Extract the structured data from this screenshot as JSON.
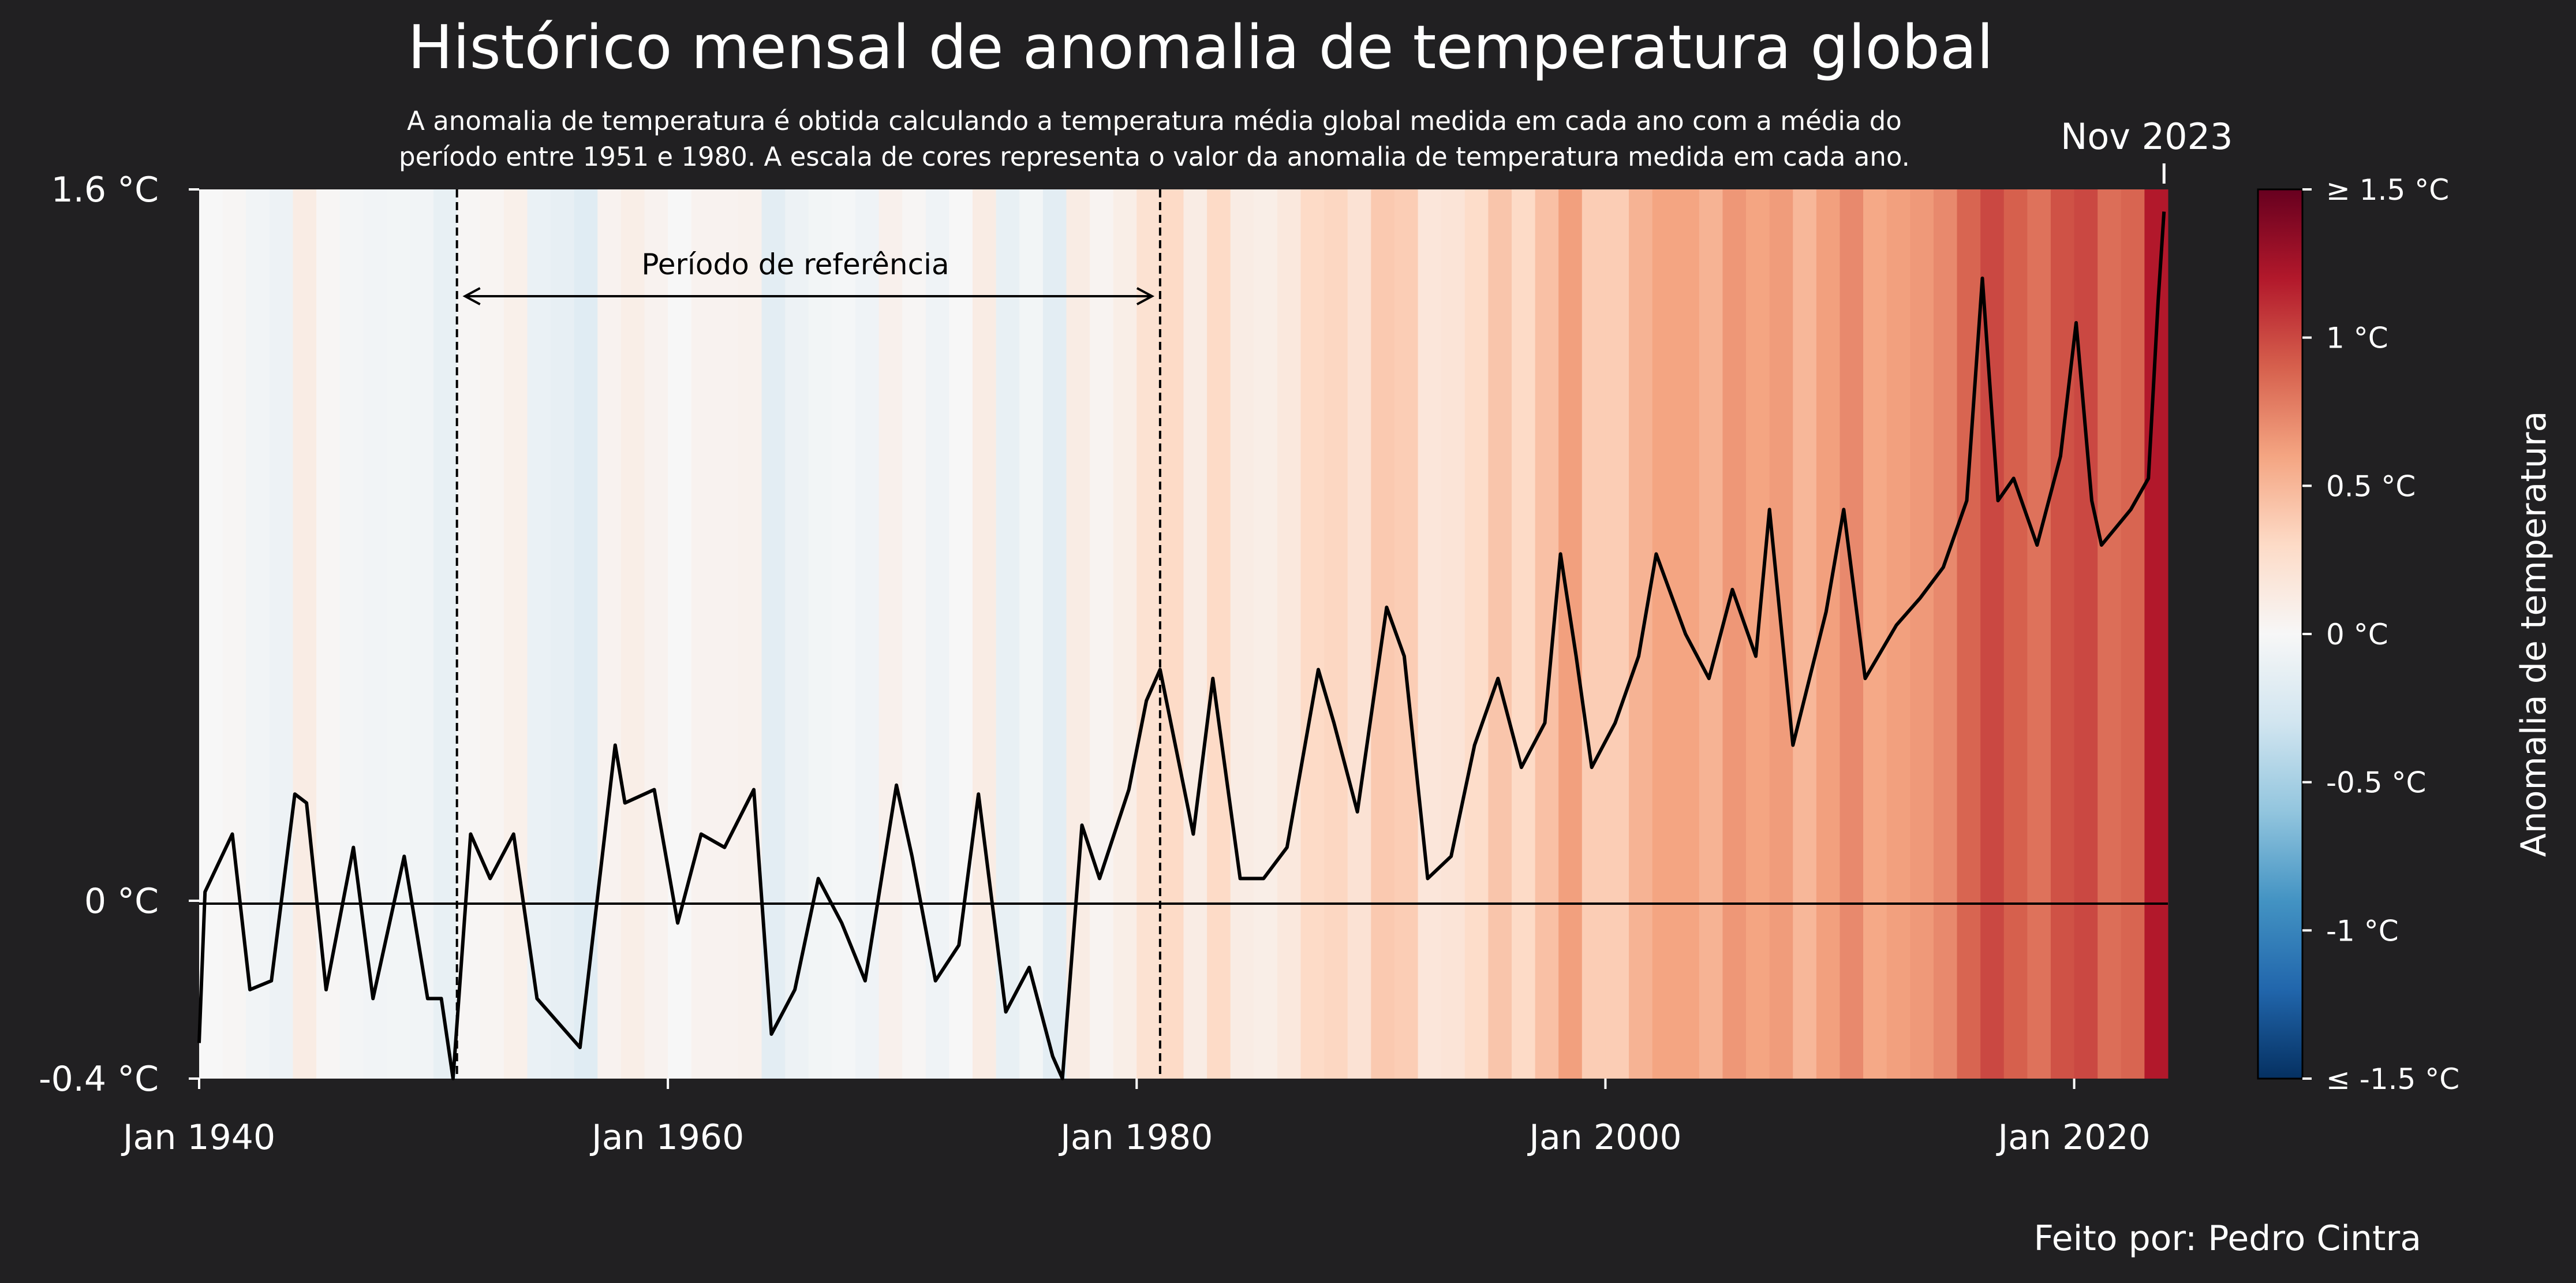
{
  "chart_data": {
    "type": "line",
    "title": "Histórico mensal de anomalia de temperatura global",
    "subtitle_lines": [
      "A anomalia de temperatura é obtida calculando a temperatura média global medida em cada ano com a média do",
      "período entre 1951 e 1980. A escala de cores representa o valor da anomalia de temperatura medida em cada ano."
    ],
    "x_range": [
      "1940-01",
      "2023-11"
    ],
    "x_ticks": [
      "Jan 1940",
      "Jan 1960",
      "Jan 1980",
      "Jan 2000",
      "Jan 2020"
    ],
    "ylim": [
      -0.4,
      1.6
    ],
    "y_ticks": [
      "1.6 °C",
      "0 °C",
      "-0.4 °C"
    ],
    "y_tick_values": [
      1.6,
      0,
      -0.4
    ],
    "last_point_label": "Nov 2023",
    "reference_period": {
      "label": "Período de referência",
      "start": "1951-01",
      "end": "1981-01"
    },
    "colorbar": {
      "label": "Anomalia de temperatura",
      "range": [
        -1.5,
        1.5
      ],
      "ticks": [
        "≥ 1.5 °C",
        "1 °C",
        "0.5 °C",
        "0 °C",
        "-0.5 °C",
        "-1 °C",
        "≤ -1.5 °C"
      ],
      "tick_values": [
        1.5,
        1,
        0.5,
        0,
        -0.5,
        -1,
        -1.5
      ],
      "colors": [
        "#053061",
        "#2166ac",
        "#4393c3",
        "#92c5de",
        "#d1e5f0",
        "#f7f7f7",
        "#fddbc7",
        "#f4a582",
        "#d6604d",
        "#b2182b",
        "#67001f"
      ]
    },
    "series": [
      {
        "yearly_mean_anomaly": [
          {
            "year": 1940,
            "value": 0.0
          },
          {
            "year": 1941,
            "value": 0.02
          },
          {
            "year": 1942,
            "value": -0.05
          },
          {
            "year": 1943,
            "value": -0.08
          },
          {
            "year": 1944,
            "value": 0.12
          },
          {
            "year": 1945,
            "value": 0.02
          },
          {
            "year": 1946,
            "value": -0.03
          },
          {
            "year": 1947,
            "value": -0.05
          },
          {
            "year": 1948,
            "value": -0.04
          },
          {
            "year": 1949,
            "value": -0.05
          },
          {
            "year": 1950,
            "value": -0.12
          },
          {
            "year": 1951,
            "value": 0.02
          },
          {
            "year": 1952,
            "value": 0.03
          },
          {
            "year": 1953,
            "value": 0.08
          },
          {
            "year": 1954,
            "value": -0.1
          },
          {
            "year": 1955,
            "value": -0.13
          },
          {
            "year": 1956,
            "value": -0.18
          },
          {
            "year": 1957,
            "value": 0.05
          },
          {
            "year": 1958,
            "value": 0.1
          },
          {
            "year": 1959,
            "value": 0.05
          },
          {
            "year": 1960,
            "value": 0.0
          },
          {
            "year": 1961,
            "value": 0.05
          },
          {
            "year": 1962,
            "value": 0.05
          },
          {
            "year": 1963,
            "value": 0.06
          },
          {
            "year": 1964,
            "value": -0.16
          },
          {
            "year": 1965,
            "value": -0.08
          },
          {
            "year": 1966,
            "value": -0.04
          },
          {
            "year": 1967,
            "value": -0.02
          },
          {
            "year": 1968,
            "value": -0.06
          },
          {
            "year": 1969,
            "value": 0.07
          },
          {
            "year": 1970,
            "value": 0.02
          },
          {
            "year": 1971,
            "value": -0.06
          },
          {
            "year": 1972,
            "value": 0.0
          },
          {
            "year": 1973,
            "value": 0.12
          },
          {
            "year": 1974,
            "value": -0.12
          },
          {
            "year": 1975,
            "value": -0.04
          },
          {
            "year": 1976,
            "value": -0.16
          },
          {
            "year": 1977,
            "value": 0.12
          },
          {
            "year": 1978,
            "value": 0.04
          },
          {
            "year": 1979,
            "value": 0.1
          },
          {
            "year": 1980,
            "value": 0.23
          },
          {
            "year": 1981,
            "value": 0.3
          },
          {
            "year": 1982,
            "value": 0.12
          },
          {
            "year": 1983,
            "value": 0.3
          },
          {
            "year": 1984,
            "value": 0.12
          },
          {
            "year": 1985,
            "value": 0.1
          },
          {
            "year": 1986,
            "value": 0.16
          },
          {
            "year": 1987,
            "value": 0.3
          },
          {
            "year": 1988,
            "value": 0.32
          },
          {
            "year": 1989,
            "value": 0.22
          },
          {
            "year": 1990,
            "value": 0.4
          },
          {
            "year": 1991,
            "value": 0.38
          },
          {
            "year": 1992,
            "value": 0.18
          },
          {
            "year": 1993,
            "value": 0.2
          },
          {
            "year": 1994,
            "value": 0.28
          },
          {
            "year": 1995,
            "value": 0.42
          },
          {
            "year": 1996,
            "value": 0.3
          },
          {
            "year": 1997,
            "value": 0.45
          },
          {
            "year": 1998,
            "value": 0.62
          },
          {
            "year": 1999,
            "value": 0.38
          },
          {
            "year": 2000,
            "value": 0.38
          },
          {
            "year": 2001,
            "value": 0.52
          },
          {
            "year": 2002,
            "value": 0.6
          },
          {
            "year": 2003,
            "value": 0.6
          },
          {
            "year": 2004,
            "value": 0.52
          },
          {
            "year": 2005,
            "value": 0.66
          },
          {
            "year": 2006,
            "value": 0.6
          },
          {
            "year": 2007,
            "value": 0.64
          },
          {
            "year": 2008,
            "value": 0.5
          },
          {
            "year": 2009,
            "value": 0.62
          },
          {
            "year": 2010,
            "value": 0.72
          },
          {
            "year": 2011,
            "value": 0.58
          },
          {
            "year": 2012,
            "value": 0.62
          },
          {
            "year": 2013,
            "value": 0.65
          },
          {
            "year": 2014,
            "value": 0.72
          },
          {
            "year": 2015,
            "value": 0.88
          },
          {
            "year": 2016,
            "value": 1.0
          },
          {
            "year": 2017,
            "value": 0.9
          },
          {
            "year": 2018,
            "value": 0.82
          },
          {
            "year": 2019,
            "value": 0.96
          },
          {
            "year": 2020,
            "value": 1.0
          },
          {
            "year": 2021,
            "value": 0.84
          },
          {
            "year": 2022,
            "value": 0.88
          },
          {
            "year": 2023,
            "value": 1.2
          }
        ],
        "monthly_points": [
          {
            "x": "1940-01",
            "y": -0.32
          },
          {
            "x": "1940-04",
            "y": 0.02
          },
          {
            "x": "1941-06",
            "y": 0.15
          },
          {
            "x": "1942-03",
            "y": -0.2
          },
          {
            "x": "1943-02",
            "y": -0.18
          },
          {
            "x": "1944-02",
            "y": 0.24
          },
          {
            "x": "1944-08",
            "y": 0.22
          },
          {
            "x": "1945-06",
            "y": -0.2
          },
          {
            "x": "1946-08",
            "y": 0.12
          },
          {
            "x": "1947-06",
            "y": -0.22
          },
          {
            "x": "1948-10",
            "y": 0.1
          },
          {
            "x": "1949-10",
            "y": -0.22
          },
          {
            "x": "1950-05",
            "y": -0.22
          },
          {
            "x": "1950-11",
            "y": -0.4
          },
          {
            "x": "1951-08",
            "y": 0.15
          },
          {
            "x": "1952-06",
            "y": 0.05
          },
          {
            "x": "1953-06",
            "y": 0.15
          },
          {
            "x": "1954-06",
            "y": -0.22
          },
          {
            "x": "1955-06",
            "y": -0.28
          },
          {
            "x": "1956-04",
            "y": -0.33
          },
          {
            "x": "1957-10",
            "y": 0.35
          },
          {
            "x": "1958-03",
            "y": 0.22
          },
          {
            "x": "1959-06",
            "y": 0.25
          },
          {
            "x": "1960-06",
            "y": -0.05
          },
          {
            "x": "1961-06",
            "y": 0.15
          },
          {
            "x": "1962-06",
            "y": 0.12
          },
          {
            "x": "1963-09",
            "y": 0.25
          },
          {
            "x": "1964-06",
            "y": -0.3
          },
          {
            "x": "1965-06",
            "y": -0.2
          },
          {
            "x": "1966-06",
            "y": 0.05
          },
          {
            "x": "1967-06",
            "y": -0.05
          },
          {
            "x": "1968-06",
            "y": -0.18
          },
          {
            "x": "1969-10",
            "y": 0.26
          },
          {
            "x": "1970-06",
            "y": 0.1
          },
          {
            "x": "1971-06",
            "y": -0.18
          },
          {
            "x": "1972-06",
            "y": -0.1
          },
          {
            "x": "1973-04",
            "y": 0.24
          },
          {
            "x": "1974-06",
            "y": -0.25
          },
          {
            "x": "1975-06",
            "y": -0.15
          },
          {
            "x": "1976-06",
            "y": -0.35
          },
          {
            "x": "1976-11",
            "y": -0.4
          },
          {
            "x": "1977-09",
            "y": 0.17
          },
          {
            "x": "1978-06",
            "y": 0.05
          },
          {
            "x": "1979-09",
            "y": 0.25
          },
          {
            "x": "1980-06",
            "y": 0.45
          },
          {
            "x": "1981-01",
            "y": 0.52
          },
          {
            "x": "1982-06",
            "y": 0.15
          },
          {
            "x": "1983-04",
            "y": 0.5
          },
          {
            "x": "1984-06",
            "y": 0.05
          },
          {
            "x": "1985-06",
            "y": 0.05
          },
          {
            "x": "1986-06",
            "y": 0.12
          },
          {
            "x": "1987-10",
            "y": 0.52
          },
          {
            "x": "1988-06",
            "y": 0.4
          },
          {
            "x": "1989-06",
            "y": 0.2
          },
          {
            "x": "1990-09",
            "y": 0.66
          },
          {
            "x": "1991-06",
            "y": 0.55
          },
          {
            "x": "1992-06",
            "y": 0.05
          },
          {
            "x": "1993-06",
            "y": 0.1
          },
          {
            "x": "1994-06",
            "y": 0.35
          },
          {
            "x": "1995-06",
            "y": 0.5
          },
          {
            "x": "1996-06",
            "y": 0.3
          },
          {
            "x": "1997-06",
            "y": 0.4
          },
          {
            "x": "1998-02",
            "y": 0.78
          },
          {
            "x": "1998-10",
            "y": 0.55
          },
          {
            "x": "1999-06",
            "y": 0.3
          },
          {
            "x": "2000-06",
            "y": 0.4
          },
          {
            "x": "2001-06",
            "y": 0.55
          },
          {
            "x": "2002-03",
            "y": 0.78
          },
          {
            "x": "2003-06",
            "y": 0.6
          },
          {
            "x": "2004-06",
            "y": 0.5
          },
          {
            "x": "2005-06",
            "y": 0.7
          },
          {
            "x": "2006-06",
            "y": 0.55
          },
          {
            "x": "2007-01",
            "y": 0.88
          },
          {
            "x": "2008-01",
            "y": 0.35
          },
          {
            "x": "2009-06",
            "y": 0.65
          },
          {
            "x": "2010-03",
            "y": 0.88
          },
          {
            "x": "2011-02",
            "y": 0.5
          },
          {
            "x": "2012-06",
            "y": 0.62
          },
          {
            "x": "2013-06",
            "y": 0.68
          },
          {
            "x": "2014-06",
            "y": 0.75
          },
          {
            "x": "2015-06",
            "y": 0.9
          },
          {
            "x": "2016-02",
            "y": 1.4
          },
          {
            "x": "2016-10",
            "y": 0.9
          },
          {
            "x": "2017-06",
            "y": 0.95
          },
          {
            "x": "2018-06",
            "y": 0.8
          },
          {
            "x": "2019-06",
            "y": 1.0
          },
          {
            "x": "2020-02",
            "y": 1.3
          },
          {
            "x": "2020-10",
            "y": 0.9
          },
          {
            "x": "2021-03",
            "y": 0.8
          },
          {
            "x": "2022-06",
            "y": 0.88
          },
          {
            "x": "2023-03",
            "y": 0.95
          },
          {
            "x": "2023-08",
            "y": 1.35
          },
          {
            "x": "2023-11",
            "y": 1.55
          }
        ]
      }
    ]
  },
  "credit": "Feito por: Pedro Cintra"
}
